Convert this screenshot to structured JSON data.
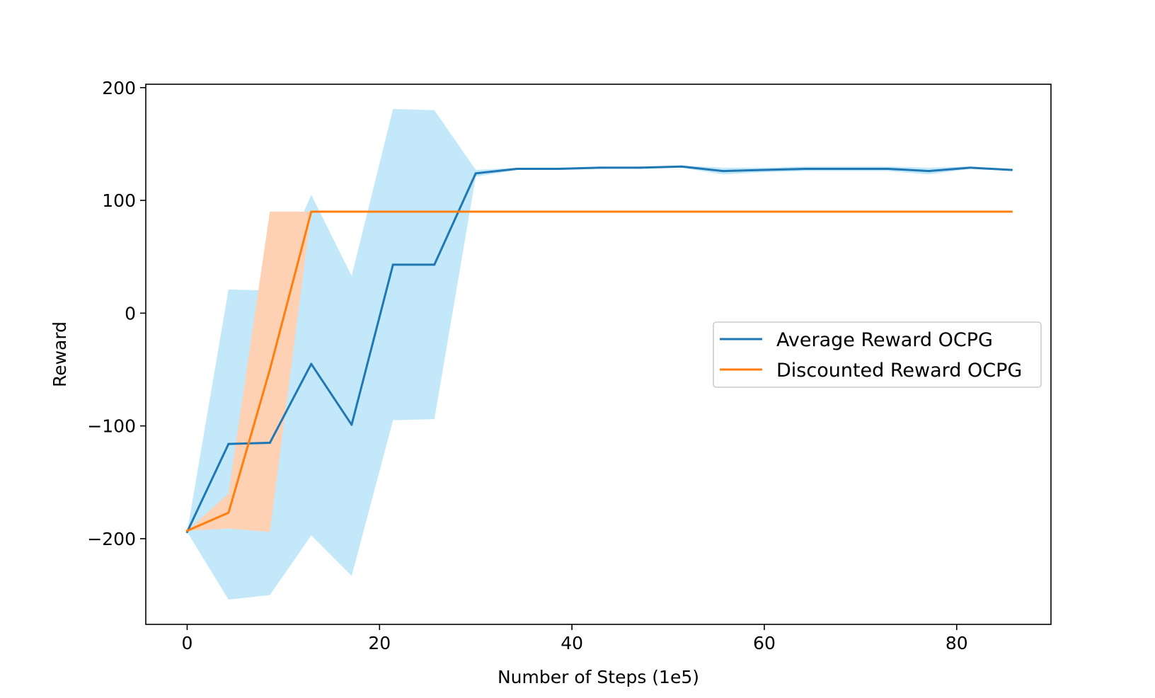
{
  "chart_data": {
    "type": "line",
    "title": "",
    "xlabel": "Number of Steps (1e5)",
    "ylabel": "Reward",
    "xlim": [
      -4.3,
      89.8
    ],
    "ylim": [
      -276,
      203
    ],
    "xticks": [
      0,
      20,
      40,
      60,
      80
    ],
    "yticks": [
      -200,
      -100,
      0,
      100,
      200
    ],
    "ytick_labels": [
      "−200",
      "−100",
      "0",
      "100",
      "200"
    ],
    "grid": false,
    "legend_position": "center-right",
    "series": [
      {
        "name": "Average Reward OCPG",
        "color": "#1f77b4",
        "band_color": "#c2e8fa",
        "x": [
          0,
          4.3,
          8.6,
          12.9,
          17.1,
          21.4,
          25.7,
          30.0,
          34.3,
          38.6,
          42.9,
          47.1,
          51.4,
          55.7,
          60.0,
          64.3,
          68.6,
          72.9,
          77.1,
          81.4,
          85.7
        ],
        "y": [
          -194,
          -116,
          -115,
          -45,
          -99,
          43,
          43,
          124,
          128,
          128,
          129,
          129,
          130,
          126,
          127,
          128,
          128,
          128,
          126,
          129,
          127
        ],
        "upper": [
          -194,
          21,
          20,
          105,
          33,
          181,
          180,
          127,
          129,
          129,
          130,
          130,
          131,
          129,
          129,
          130,
          130,
          130,
          129,
          130,
          128
        ],
        "lower": [
          -194,
          -254,
          -250,
          -197,
          -233,
          -95,
          -94,
          121,
          127,
          127,
          128,
          128,
          129,
          123,
          125,
          126,
          126,
          126,
          123,
          128,
          126
        ]
      },
      {
        "name": "Discounted Reward OCPG",
        "color": "#ff7f0e",
        "band_color": "#fed1b4",
        "x": [
          0,
          4.3,
          8.6,
          12.9,
          17.1,
          21.4,
          25.7,
          30.0,
          34.3,
          38.6,
          42.9,
          47.1,
          51.4,
          55.7,
          60.0,
          64.3,
          68.6,
          72.9,
          77.1,
          81.4,
          85.7
        ],
        "y": [
          -193,
          -177,
          -50,
          90,
          90,
          90,
          90,
          90,
          90,
          90,
          90,
          90,
          90,
          90,
          90,
          90,
          90,
          90,
          90,
          90,
          90
        ],
        "upper": [
          -193,
          -160,
          90,
          90,
          90,
          90,
          90,
          90,
          90,
          90,
          90,
          90,
          90,
          90,
          90,
          90,
          90,
          90,
          90,
          90,
          90
        ],
        "lower": [
          -193,
          -191,
          -194,
          90,
          90,
          90,
          90,
          90,
          90,
          90,
          90,
          90,
          90,
          90,
          90,
          90,
          90,
          90,
          90,
          90,
          90
        ]
      }
    ]
  }
}
